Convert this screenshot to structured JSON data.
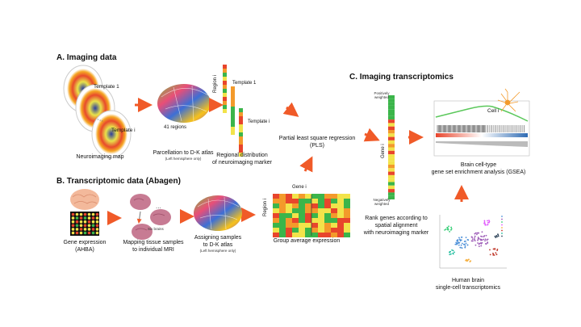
{
  "sections": {
    "a": "A. Imaging data",
    "b": "B. Transcriptomic data (Abagen)",
    "c": "C. Imaging transcriptomics"
  },
  "imaging": {
    "template_1": "Template 1",
    "template_i": "Template i",
    "neuroimaging_map": "Neuroimaging map",
    "regions_41": "41 regions",
    "parcellation_main": "Parcellation to D-K atlas",
    "parcellation_sub": "(Left hemisphere only)",
    "region_axis": "Region i",
    "regional_template_1": "Template 1",
    "regional_template_i": "Template i",
    "regional_line1": "Regional distribution",
    "regional_line2": "of neuroimaging marker",
    "pls_line1": "Partial least square regression",
    "pls_line2": "(PLS)"
  },
  "transcriptomic": {
    "gene_expr_line1": "Gene expression",
    "gene_expr_line2": "(AHBA)",
    "six_brains": "Six brains",
    "mapping_line1": "Mapping tissue samples",
    "mapping_line2": "to individual MRI",
    "assign_line1": "Assigning samples",
    "assign_line2": "to D-K atlas",
    "assign_sub": "(Left hemisphere only)",
    "gene_label": "Gene i",
    "region_axis": "Region i",
    "group_avg": "Group average expression"
  },
  "transcriptomics_c": {
    "pos_weighted_1": "Positively",
    "pos_weighted_2": "weighted",
    "neg_weighted_1": "Negatively",
    "neg_weighted_2": "weighted",
    "gene_axis": "Gene i",
    "rank_line1": "Rank genes according to",
    "rank_line2": "spatial alignment",
    "rank_line3": "with neuroimaging marker",
    "cell_label": "Cell i",
    "gsea_line1": "Brain cell-type",
    "gsea_line2": "gene set enrichment analysis (GSEA)",
    "sc_line1": "Human brain",
    "sc_line2": "single-cell transcriptomics"
  },
  "colors": {
    "arrow": "#f05a28",
    "red": "#e8452c",
    "yellow": "#f2e34a",
    "green": "#3bb54a",
    "orange": "#f39a2b",
    "gsea_curve": "#5bc85b"
  }
}
